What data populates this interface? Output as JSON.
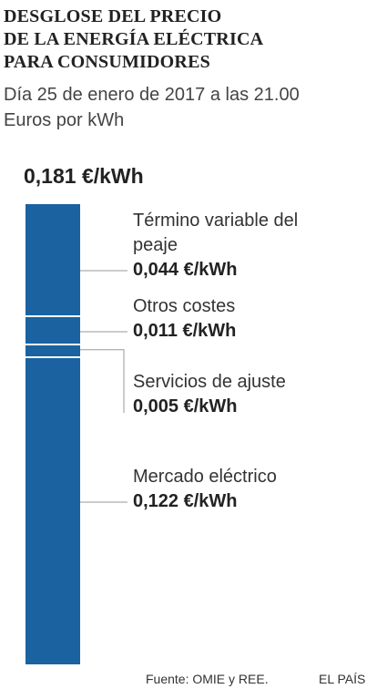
{
  "chart_data": {
    "type": "stacked_bar",
    "title": [
      "DESGLOSE DEL PRECIO",
      "DE LA ENERGÍA ELÉCTRICA",
      "PARA CONSUMIDORES"
    ],
    "subtitle": [
      "Día 25 de enero de 2017 a las 21.00",
      "Euros por kWh"
    ],
    "total": 0.181,
    "total_label": "0,181 €/kWh",
    "series": [
      {
        "name": "Mercado eléctrico",
        "color": "#1a62a0",
        "values": [
          0.122
        ],
        "value_labels": [
          "0,122 €/kWh"
        ]
      },
      {
        "name": "Servicios de ajuste",
        "color": "#1a62a0",
        "values": [
          0.005
        ],
        "value_labels": [
          "0,005 €/kWh"
        ]
      },
      {
        "name": "Otros costes",
        "color": "#1a62a0",
        "values": [
          0.011
        ],
        "value_labels": [
          "0,011 €/kWh"
        ]
      },
      {
        "name": "Término variable del peaje",
        "color": "#1a62a0",
        "values": [
          0.044
        ],
        "value_labels": [
          "0,044 €/kWh"
        ]
      }
    ],
    "source": "Fuente: OMIE y REE.",
    "credit": "EL PAÍS"
  }
}
